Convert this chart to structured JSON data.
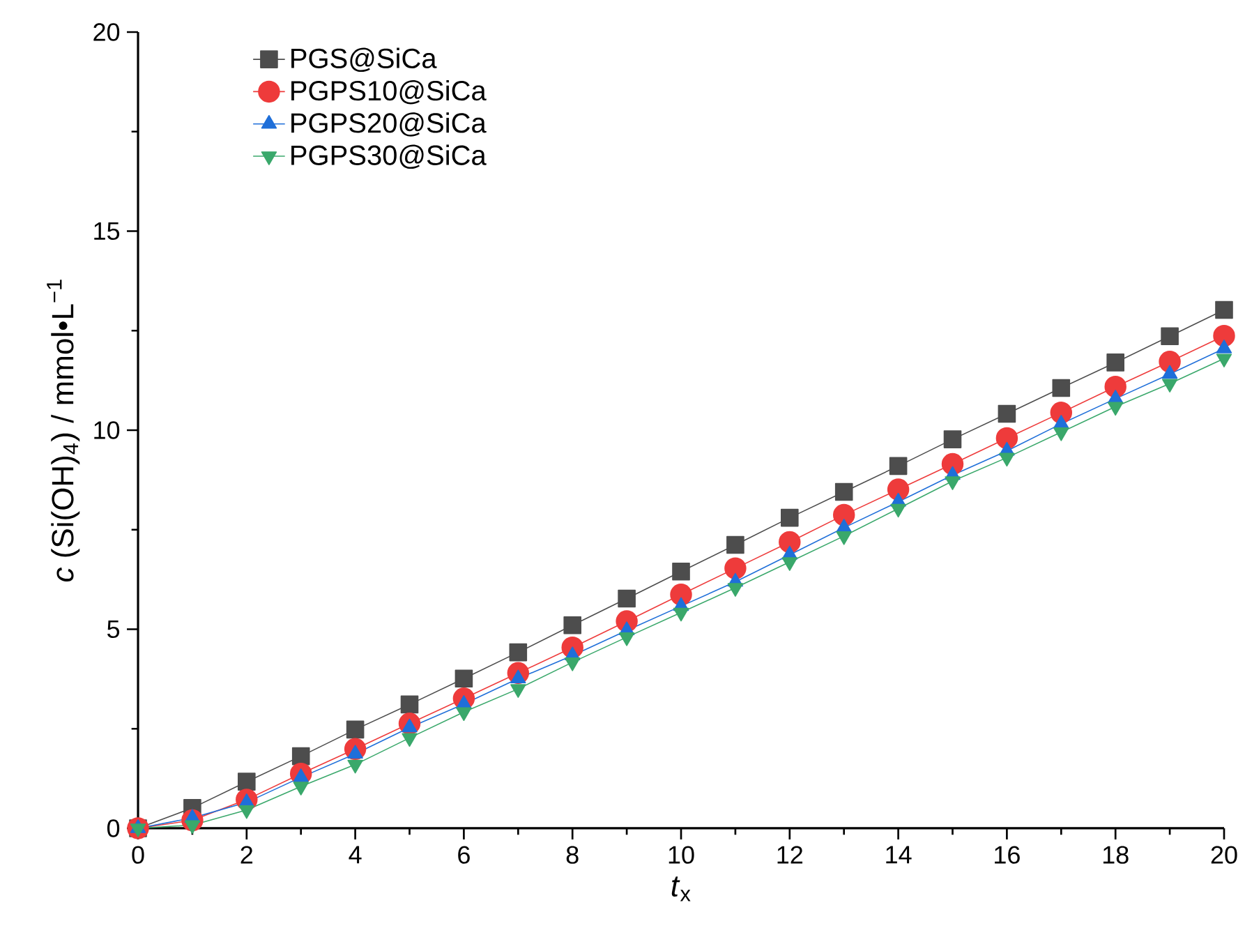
{
  "chart_data": {
    "type": "line",
    "xlabel": "*t*$_{x}$",
    "ylabel": "*c* (Si(OH)$_{4}$) / mmol•L$^{−1}$",
    "x": [
      0,
      1,
      2,
      3,
      4,
      5,
      6,
      7,
      8,
      9,
      10,
      11,
      12,
      13,
      14,
      15,
      16,
      17,
      18,
      19,
      20
    ],
    "series": [
      {
        "name": "PGS@SiCa",
        "color": "#4d4d4d",
        "marker": "square",
        "values": [
          0,
          0.51,
          1.17,
          1.81,
          2.48,
          3.11,
          3.76,
          4.42,
          5.1,
          5.77,
          6.45,
          7.12,
          7.8,
          8.45,
          9.1,
          9.77,
          10.41,
          11.06,
          11.7,
          12.36,
          13.02
        ]
      },
      {
        "name": "PGPS10@SiCa",
        "color": "#ee3b3b",
        "marker": "circle",
        "values": [
          0,
          0.2,
          0.72,
          1.37,
          1.99,
          2.63,
          3.26,
          3.9,
          4.54,
          5.2,
          5.87,
          6.53,
          7.19,
          7.87,
          8.51,
          9.15,
          9.8,
          10.44,
          11.09,
          11.72,
          12.37
        ]
      },
      {
        "name": "PGPS20@SiCa",
        "color": "#1f6fd9",
        "marker": "triangle",
        "values": [
          0,
          0.26,
          0.65,
          1.28,
          1.87,
          2.53,
          3.12,
          3.76,
          4.34,
          4.97,
          5.58,
          6.19,
          6.87,
          7.55,
          8.2,
          8.87,
          9.48,
          10.16,
          10.79,
          11.41,
          12.05
        ]
      },
      {
        "name": "PGPS30@SiCa",
        "color": "#3aa86b",
        "marker": "triangle-down",
        "values": [
          0,
          0.08,
          0.46,
          1.05,
          1.6,
          2.27,
          2.92,
          3.5,
          4.17,
          4.8,
          5.42,
          6.04,
          6.69,
          7.34,
          8.03,
          8.72,
          9.31,
          9.95,
          10.59,
          11.17,
          11.8
        ]
      }
    ],
    "xlim": [
      0,
      20
    ],
    "ylim": [
      0,
      20
    ],
    "xticks": [
      0,
      2,
      4,
      6,
      8,
      10,
      12,
      14,
      16,
      18,
      20
    ],
    "yticks": [
      0,
      5,
      10,
      15,
      20
    ],
    "grid": false,
    "legend": "top left",
    "line_style": "solid"
  }
}
